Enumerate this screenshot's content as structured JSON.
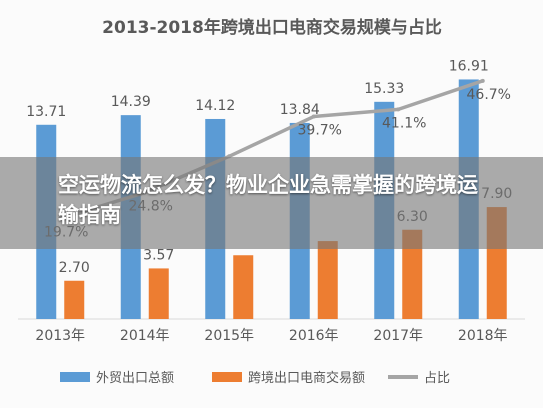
{
  "chart_data": {
    "type": "bar",
    "title": "2013-2018年跨境出口电商交易规模与占比",
    "categories": [
      "2013年",
      "2014年",
      "2015年",
      "2016年",
      "2017年",
      "2018年"
    ],
    "series": [
      {
        "name": "外贸出口总额",
        "type": "bar",
        "color": "#5b9bd5",
        "values": [
          13.71,
          14.39,
          14.12,
          13.84,
          15.33,
          16.91
        ],
        "labels": [
          "13.71",
          "14.39",
          "14.12",
          "13.84",
          "15.33",
          "16.91"
        ]
      },
      {
        "name": "跨境出口电商交易额",
        "type": "bar",
        "color": "#ed7d31",
        "values": [
          2.7,
          3.57,
          4.5,
          5.5,
          6.3,
          7.9
        ],
        "labels": [
          "2.70",
          "3.57",
          "",
          "",
          "6.30",
          "7.90"
        ]
      },
      {
        "name": "占比",
        "type": "line",
        "color": "#a5a5a5",
        "values": [
          19.7,
          24.8,
          31.9,
          39.7,
          41.1,
          46.7
        ],
        "labels": [
          "19.7%",
          "24.8%",
          "",
          "39.7%",
          "41.1%",
          "46.7%"
        ]
      }
    ],
    "ylim": [
      0,
      18
    ],
    "y2lim": [
      0,
      50
    ],
    "grid": false,
    "legend": "bottom"
  },
  "overlay": {
    "headline": "空运物流怎么发？物业企业急需掌握的跨境运输指南"
  }
}
